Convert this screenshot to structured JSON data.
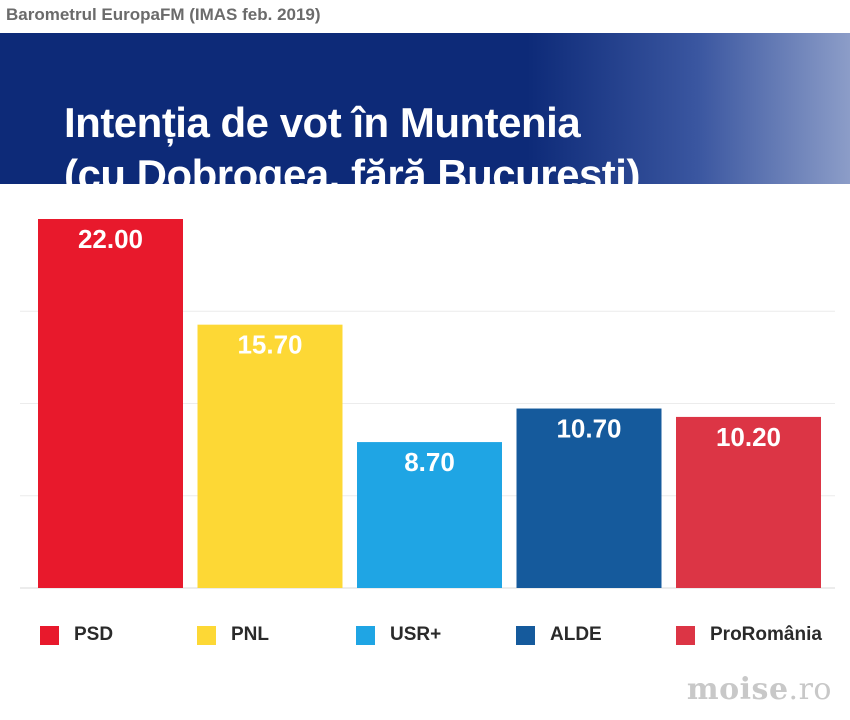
{
  "source_note": "Barometrul EuropaFM (IMAS feb. 2019)",
  "banner": {
    "title_line1": "Intenția de vot în Muntenia",
    "title_line2": "(cu Dobrogea, fără București)"
  },
  "chart_data": {
    "type": "bar",
    "title": "Intenția de vot în Muntenia (cu Dobrogea, fără București)",
    "categories": [
      "PSD",
      "PNL",
      "USR+",
      "ALDE",
      "ProRomânia"
    ],
    "values": [
      22.0,
      15.7,
      8.7,
      10.7,
      10.2
    ],
    "value_labels": [
      "22.00",
      "15.70",
      "8.70",
      "10.70",
      "10.20"
    ],
    "colors": [
      "#e8192c",
      "#fdd835",
      "#1fa5e4",
      "#155a9c",
      "#dc3545"
    ],
    "ylim": [
      0,
      22
    ],
    "grid": true,
    "legend_position": "bottom"
  },
  "legend": [
    {
      "label": "PSD",
      "color": "#e8192c"
    },
    {
      "label": "PNL",
      "color": "#fdd835"
    },
    {
      "label": "USR+",
      "color": "#1fa5e4"
    },
    {
      "label": "ALDE",
      "color": "#155a9c"
    },
    {
      "label": "ProRomânia",
      "color": "#dc3545"
    }
  ],
  "watermark": {
    "name": "moise",
    "tld": ".ro"
  }
}
